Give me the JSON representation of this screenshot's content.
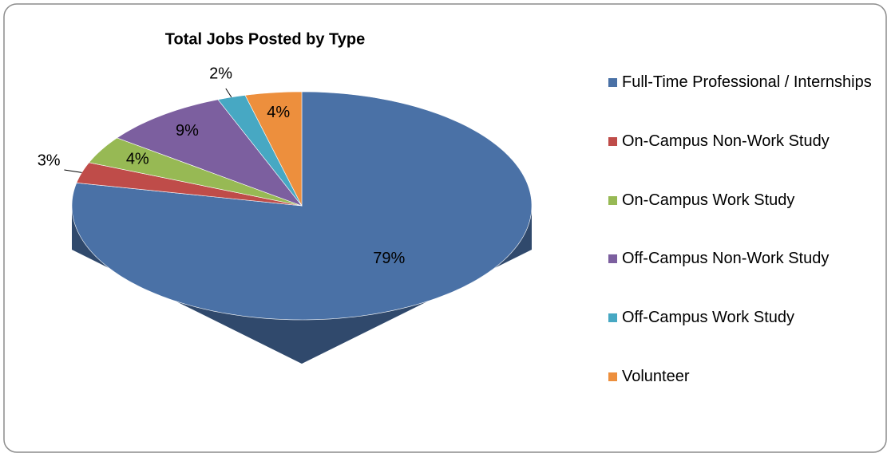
{
  "chart_data": {
    "type": "pie",
    "title": "Total Jobs Posted by Type",
    "categories": [
      "Full-Time Professional / Internships",
      "On-Campus Non-Work Study",
      "On-Campus Work Study",
      "Off-Campus Non-Work Study",
      "Off-Campus Work Study",
      "Volunteer"
    ],
    "values": [
      79,
      3,
      4,
      9,
      2,
      4
    ],
    "value_labels": [
      "79%",
      "3%",
      "4%",
      "9%",
      "2%",
      "4%"
    ],
    "colors": [
      "#4a71a6",
      "#bf4c49",
      "#97b954",
      "#7c5f9f",
      "#47a8c3",
      "#ed8f3d"
    ],
    "legend": "right"
  }
}
